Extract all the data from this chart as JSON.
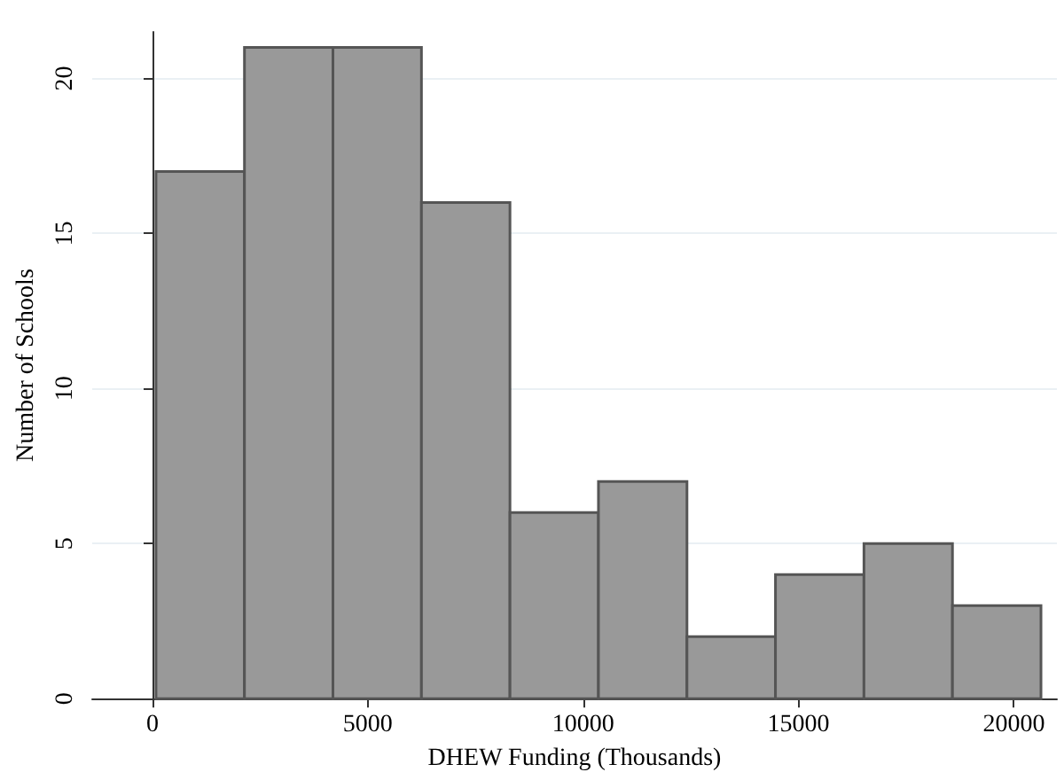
{
  "chart_data": {
    "type": "histogram",
    "xlabel": "DHEW Funding (Thousands)",
    "ylabel": "Number of Schools",
    "bins": [
      80,
      2135,
      4190,
      6245,
      8300,
      10355,
      12410,
      14465,
      16520,
      18575,
      20630
    ],
    "values": [
      17,
      21,
      21,
      16,
      6,
      7,
      2,
      4,
      5,
      3
    ],
    "color": "#999999",
    "xlim": [
      -1400,
      21000
    ],
    "xticks": [
      0,
      5000,
      10000,
      15000,
      20000
    ],
    "ylim": [
      0,
      21.5
    ],
    "yticks": [
      0,
      5,
      10,
      15,
      20
    ],
    "grid": "y"
  }
}
